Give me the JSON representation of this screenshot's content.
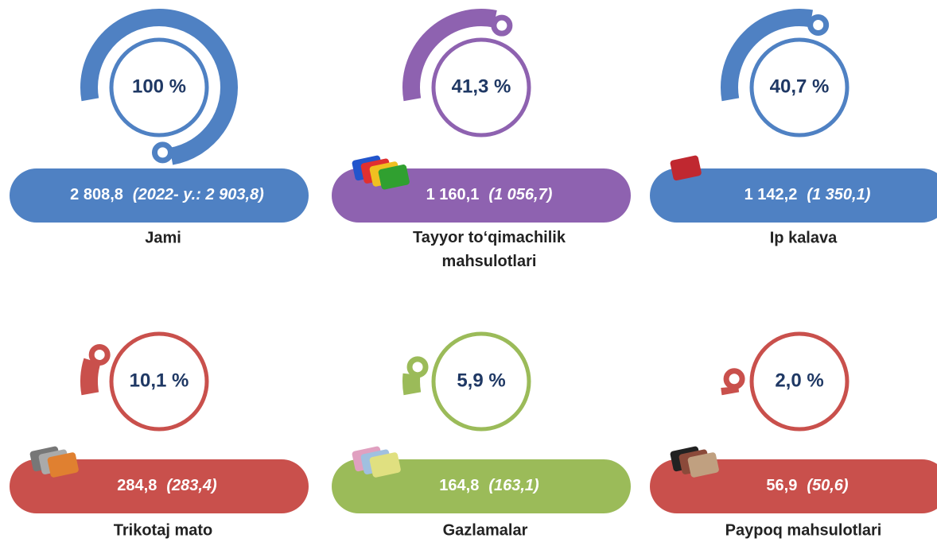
{
  "items": [
    {
      "share": 100,
      "share_label": "100 %",
      "value": "2 808,8",
      "previous": "(2022- y.: 2 903,8)",
      "label": "Jami",
      "color": "#4f81c3"
    },
    {
      "share": 41.3,
      "share_label": "41,3 %",
      "value": "1 160,1",
      "previous": "(1 056,7)",
      "label": "Tayyor to‘qimachilik mahsulotlari",
      "color": "#8e62b0"
    },
    {
      "share": 40.7,
      "share_label": "40,7 %",
      "value": "1 142,2",
      "previous": "(1 350,1)",
      "label": "Ip kalava",
      "color": "#4f81c3"
    },
    {
      "share": 10.1,
      "share_label": "10,1 %",
      "value": "284,8",
      "previous": "(283,4)",
      "label": "Trikotaj mato",
      "color": "#c9504c"
    },
    {
      "share": 5.9,
      "share_label": "5,9 %",
      "value": "164,8",
      "previous": "(163,1)",
      "label": "Gazlamalar",
      "color": "#9bbb59"
    },
    {
      "share": 2.0,
      "share_label": "2,0 %",
      "value": "56,9",
      "previous": "(50,6)",
      "label": "Paypoq mahsulotlari",
      "color": "#c9504c"
    }
  ]
}
